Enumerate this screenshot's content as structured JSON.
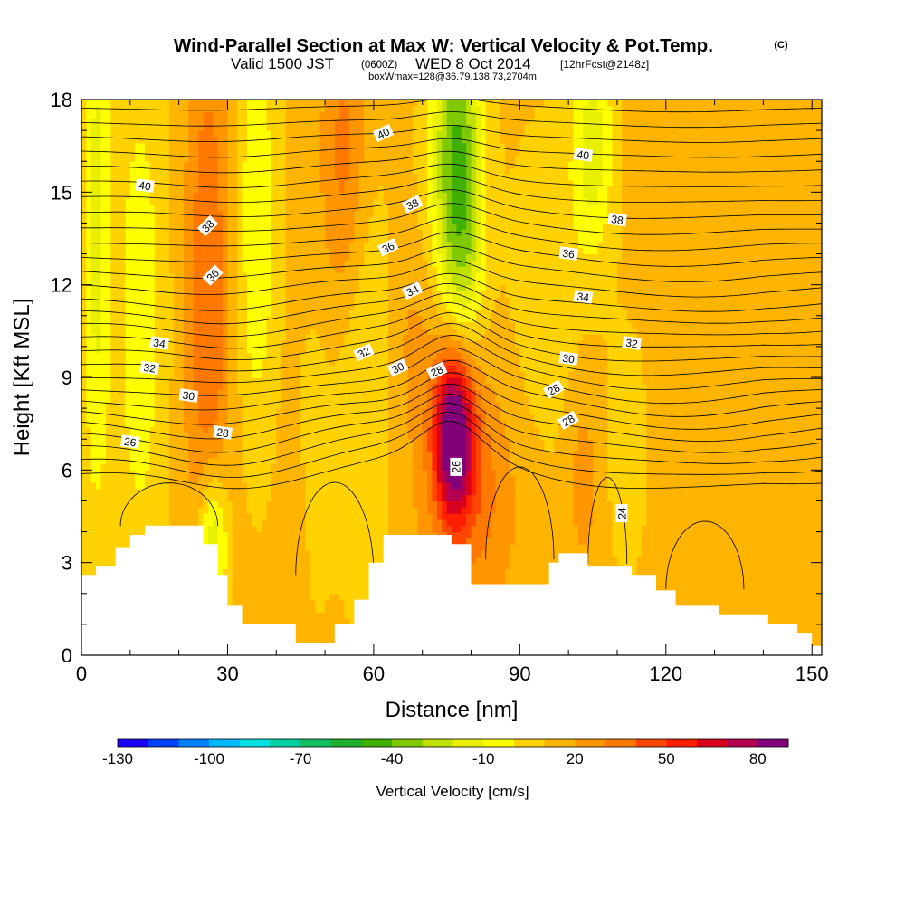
{
  "chart_data": {
    "type": "heatmap",
    "title": "Wind-Parallel Section at Max W: Vertical Velocity & Pot.Temp.",
    "title_suffix": "(C)",
    "subtitle": {
      "valid": "Valid 1500 JST",
      "utc": "(0600Z)",
      "date": "WED 8 Oct 2014",
      "forecast": "[12hrFcst@2148z]"
    },
    "subtitle2": "boxWmax=128@36.79,138.73,2704m",
    "xlabel": "Distance [nm]",
    "ylabel": "Height [Kft MSL]",
    "xlim": [
      0,
      152
    ],
    "ylim": [
      0,
      18
    ],
    "x_ticks": [
      0,
      30,
      60,
      90,
      120,
      150
    ],
    "y_ticks": [
      0,
      3,
      6,
      9,
      12,
      15,
      18
    ],
    "x_tick_labels": [
      "0",
      "30",
      "60",
      "90",
      "120",
      "150"
    ],
    "y_tick_labels": [
      "0",
      "3",
      "6",
      "9",
      "12",
      "15",
      "18"
    ],
    "colorbar": {
      "label": "Vertical Velocity [cm/s]",
      "levels": [
        -130,
        -120,
        -110,
        -100,
        -90,
        -80,
        -70,
        -60,
        -50,
        -40,
        -30,
        -20,
        -10,
        0,
        10,
        20,
        30,
        40,
        50,
        60,
        70,
        80,
        90
      ],
      "colors": [
        "#1c00ff",
        "#0040ff",
        "#0080ff",
        "#00b8ff",
        "#00e0e0",
        "#00d0a0",
        "#10c060",
        "#20b030",
        "#40b000",
        "#80c800",
        "#c0e000",
        "#e8f000",
        "#ffff00",
        "#ffd200",
        "#ffb400",
        "#ff9600",
        "#ff7800",
        "#ff4600",
        "#ff1e00",
        "#d7001e",
        "#b40050",
        "#820078"
      ],
      "tick_labels": [
        "-130",
        "-100",
        "-70",
        "-40",
        "-10",
        "20",
        "50",
        "80"
      ],
      "tick_values": [
        -130,
        -100,
        -70,
        -40,
        -10,
        20,
        50,
        80
      ]
    },
    "field_features": [
      {
        "name": "updraft core",
        "x": 77,
        "z": 7.2,
        "w_max": 80
      },
      {
        "name": "updraft band",
        "x": 26,
        "z": 12,
        "w_max": 40
      },
      {
        "name": "downdraft column",
        "x": 77,
        "z": 16,
        "w_min": -40
      }
    ],
    "isentropes": [
      {
        "theta": 24,
        "label_x": 111,
        "label_z": 4.6
      },
      {
        "theta": 26,
        "label_x": 10,
        "label_z": 6.9
      },
      {
        "theta": 26,
        "label_x": 77,
        "label_z": 6.1
      },
      {
        "theta": 28,
        "label_x": 29,
        "label_z": 7.2
      },
      {
        "theta": 28,
        "label_x": 73,
        "label_z": 9.2
      },
      {
        "theta": 28,
        "label_x": 97,
        "label_z": 8.6
      },
      {
        "theta": 28,
        "label_x": 100,
        "label_z": 7.6
      },
      {
        "theta": 30,
        "label_x": 22,
        "label_z": 8.4
      },
      {
        "theta": 30,
        "label_x": 65,
        "label_z": 9.3
      },
      {
        "theta": 30,
        "label_x": 100,
        "label_z": 9.6
      },
      {
        "theta": 32,
        "label_x": 14,
        "label_z": 9.3
      },
      {
        "theta": 32,
        "label_x": 58,
        "label_z": 9.8
      },
      {
        "theta": 32,
        "label_x": 113,
        "label_z": 10.1
      },
      {
        "theta": 34,
        "label_x": 16,
        "label_z": 10.1
      },
      {
        "theta": 34,
        "label_x": 68,
        "label_z": 11.8
      },
      {
        "theta": 34,
        "label_x": 103,
        "label_z": 11.6
      },
      {
        "theta": 36,
        "label_x": 27,
        "label_z": 12.3
      },
      {
        "theta": 36,
        "label_x": 63,
        "label_z": 13.2
      },
      {
        "theta": 36,
        "label_x": 100,
        "label_z": 13
      },
      {
        "theta": 38,
        "label_x": 26,
        "label_z": 13.9
      },
      {
        "theta": 38,
        "label_x": 68,
        "label_z": 14.6
      },
      {
        "theta": 38,
        "label_x": 110,
        "label_z": 14.1
      },
      {
        "theta": 40,
        "label_x": 13,
        "label_z": 15.2
      },
      {
        "theta": 40,
        "label_x": 62,
        "label_z": 16.9
      },
      {
        "theta": 40,
        "label_x": 103,
        "label_z": 16.2
      }
    ],
    "terrain": [
      {
        "x": 0,
        "z": 2.6
      },
      {
        "x": 3,
        "z": 2.9
      },
      {
        "x": 7,
        "z": 3.5
      },
      {
        "x": 10,
        "z": 3.9
      },
      {
        "x": 13,
        "z": 4.2
      },
      {
        "x": 22,
        "z": 4.2
      },
      {
        "x": 25,
        "z": 3.6
      },
      {
        "x": 28,
        "z": 2.6
      },
      {
        "x": 30,
        "z": 1.6
      },
      {
        "x": 33,
        "z": 1.0
      },
      {
        "x": 42,
        "z": 1.0
      },
      {
        "x": 44,
        "z": 0.4
      },
      {
        "x": 49,
        "z": 0.4
      },
      {
        "x": 52,
        "z": 1.0
      },
      {
        "x": 56,
        "z": 1.8
      },
      {
        "x": 59,
        "z": 3.0
      },
      {
        "x": 62,
        "z": 3.9
      },
      {
        "x": 71,
        "z": 3.9
      },
      {
        "x": 76,
        "z": 3.6
      },
      {
        "x": 80,
        "z": 2.3
      },
      {
        "x": 92,
        "z": 2.3
      },
      {
        "x": 96,
        "z": 3.0
      },
      {
        "x": 98,
        "z": 3.3
      },
      {
        "x": 102,
        "z": 3.3
      },
      {
        "x": 104,
        "z": 2.9
      },
      {
        "x": 110,
        "z": 2.9
      },
      {
        "x": 113,
        "z": 2.6
      },
      {
        "x": 118,
        "z": 2.1
      },
      {
        "x": 122,
        "z": 1.6
      },
      {
        "x": 127,
        "z": 1.6
      },
      {
        "x": 131,
        "z": 1.3
      },
      {
        "x": 138,
        "z": 1.3
      },
      {
        "x": 141,
        "z": 1.0
      },
      {
        "x": 145,
        "z": 1.0
      },
      {
        "x": 147,
        "z": 0.7
      },
      {
        "x": 150,
        "z": 0.3
      },
      {
        "x": 152,
        "z": 0.3
      }
    ]
  }
}
